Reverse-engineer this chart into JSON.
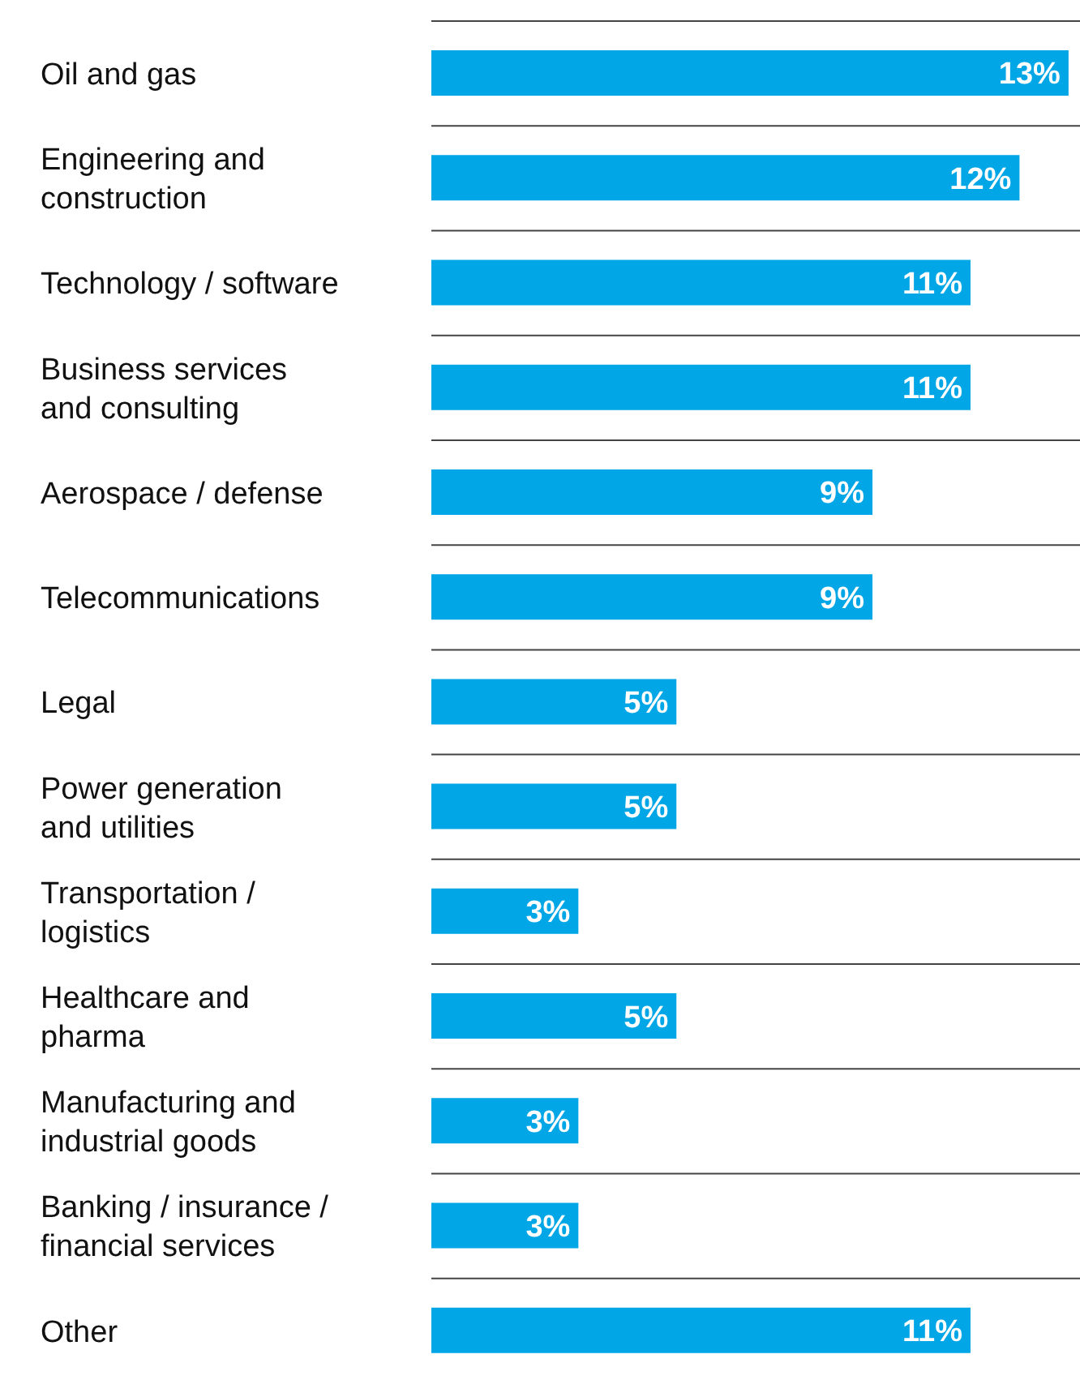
{
  "chart_data": {
    "type": "bar",
    "orientation": "horizontal",
    "categories": [
      "Oil and gas",
      "Engineering and\nconstruction",
      "Technology / software",
      "Business services\nand consulting",
      "Aerospace / defense",
      "Telecommunications",
      "Legal",
      "Power generation\nand utilities",
      "Transportation /\nlogistics",
      "Healthcare and\npharma",
      "Manufacturing and\nindustrial goods",
      "Banking / insurance /\nfinancial services",
      "Other"
    ],
    "values": [
      13,
      12,
      11,
      11,
      9,
      9,
      5,
      5,
      3,
      5,
      3,
      3,
      11
    ],
    "value_labels": [
      "13%",
      "12%",
      "11%",
      "11%",
      "9%",
      "9%",
      "5%",
      "5%",
      "3%",
      "5%",
      "3%",
      "3%",
      "11%"
    ],
    "color": "#00a6e6",
    "xlim": [
      0,
      13.3
    ],
    "tick_labels": "y",
    "grid": "y"
  }
}
